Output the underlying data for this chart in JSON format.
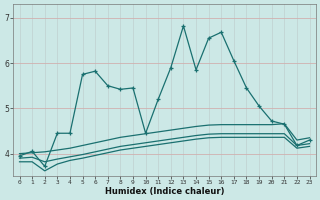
{
  "xlabel": "Humidex (Indice chaleur)",
  "bg_color": "#cce8e6",
  "grid_color": "#b8d4d0",
  "line_color": "#1a7070",
  "xlim": [
    -0.5,
    23.5
  ],
  "ylim": [
    3.5,
    7.3
  ],
  "yticks": [
    4,
    5,
    6,
    7
  ],
  "xticks": [
    0,
    1,
    2,
    3,
    4,
    5,
    6,
    7,
    8,
    9,
    10,
    11,
    12,
    13,
    14,
    15,
    16,
    17,
    18,
    19,
    20,
    21,
    22,
    23
  ],
  "xtick_labels": [
    "0",
    "1",
    "2",
    "3",
    "4",
    "5",
    "6",
    "7",
    "8",
    "9",
    "10",
    "11",
    "12",
    "13",
    "14",
    "15",
    "16",
    "17",
    "18",
    "19",
    "20",
    "21",
    "22",
    "23"
  ],
  "series": [
    {
      "x": [
        0,
        1,
        2,
        3,
        4,
        5,
        6,
        7,
        8,
        9,
        10,
        11,
        12,
        13,
        14,
        15,
        16,
        17,
        18,
        19,
        20,
        21,
        22,
        23
      ],
      "y": [
        3.95,
        4.05,
        3.72,
        4.45,
        4.45,
        5.75,
        5.82,
        5.5,
        5.42,
        5.45,
        4.45,
        5.2,
        5.9,
        6.82,
        5.85,
        6.55,
        6.68,
        6.05,
        5.45,
        5.05,
        4.72,
        4.65,
        4.18,
        4.3
      ],
      "marker": true,
      "lw": 0.9
    },
    {
      "x": [
        0,
        1,
        2,
        3,
        4,
        5,
        6,
        7,
        8,
        9,
        10,
        11,
        12,
        13,
        14,
        15,
        16,
        17,
        18,
        19,
        20,
        21,
        22,
        23
      ],
      "y": [
        4.0,
        4.02,
        4.04,
        4.08,
        4.12,
        4.18,
        4.24,
        4.3,
        4.36,
        4.4,
        4.44,
        4.48,
        4.52,
        4.56,
        4.6,
        4.63,
        4.64,
        4.64,
        4.64,
        4.64,
        4.64,
        4.66,
        4.3,
        4.35
      ],
      "marker": false,
      "lw": 0.9
    },
    {
      "x": [
        0,
        1,
        2,
        3,
        4,
        5,
        6,
        7,
        8,
        9,
        10,
        11,
        12,
        13,
        14,
        15,
        16,
        17,
        18,
        19,
        20,
        21,
        22,
        23
      ],
      "y": [
        3.9,
        3.92,
        3.82,
        3.88,
        3.93,
        3.98,
        4.04,
        4.1,
        4.16,
        4.2,
        4.24,
        4.28,
        4.32,
        4.36,
        4.4,
        4.43,
        4.44,
        4.44,
        4.44,
        4.44,
        4.44,
        4.44,
        4.18,
        4.22
      ],
      "marker": false,
      "lw": 0.9
    },
    {
      "x": [
        0,
        1,
        2,
        3,
        4,
        5,
        6,
        7,
        8,
        9,
        10,
        11,
        12,
        13,
        14,
        15,
        16,
        17,
        18,
        19,
        20,
        21,
        22,
        23
      ],
      "y": [
        3.82,
        3.82,
        3.62,
        3.77,
        3.85,
        3.9,
        3.96,
        4.02,
        4.08,
        4.12,
        4.16,
        4.2,
        4.24,
        4.28,
        4.32,
        4.35,
        4.36,
        4.36,
        4.36,
        4.36,
        4.36,
        4.36,
        4.12,
        4.16
      ],
      "marker": false,
      "lw": 0.9
    }
  ]
}
